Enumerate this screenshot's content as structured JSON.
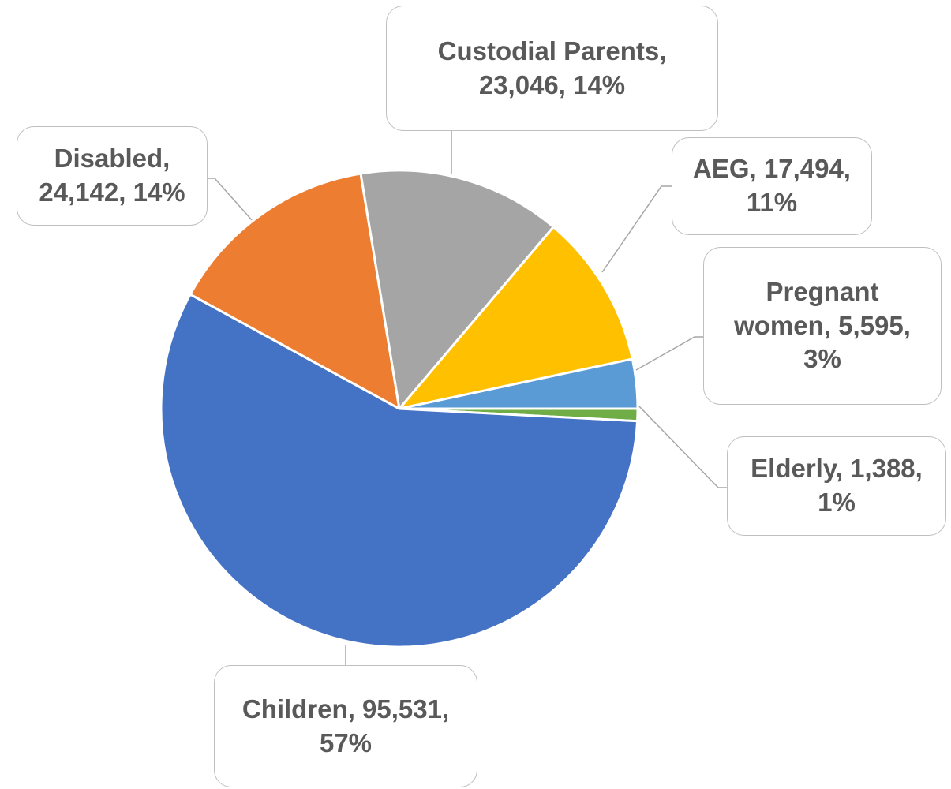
{
  "chart_data": {
    "type": "pie",
    "start": "3 o'clock, clockwise",
    "label_format": "category, value, percentage",
    "slices": [
      {
        "label": "Elderly",
        "value": 1388,
        "percent": "1%",
        "color": "#70ad47"
      },
      {
        "label": "Children",
        "value": 95531,
        "percent": "57%",
        "color": "#4472c4"
      },
      {
        "label": "Disabled",
        "value": 24142,
        "percent": "14%",
        "color": "#ed7d31"
      },
      {
        "label": "Custodial Parents",
        "value": 23046,
        "percent": "14%",
        "color": "#a5a5a5"
      },
      {
        "label": "AEG",
        "value": 17494,
        "percent": "11%",
        "color": "#ffc000"
      },
      {
        "label": "Pregnant women",
        "value": 5595,
        "percent": "3%",
        "color": "#5b9bd5"
      }
    ],
    "data_labels": [
      {
        "key": "custodial",
        "lines": [
          "Custodial Parents,",
          "23,046, 14%"
        ]
      },
      {
        "key": "disabled",
        "lines": [
          "Disabled,",
          "24,142, 14%"
        ]
      },
      {
        "key": "aeg",
        "lines": [
          "AEG, 17,494,",
          "11%"
        ]
      },
      {
        "key": "pregnant",
        "lines": [
          "Pregnant",
          "women, 5,595,",
          "3%"
        ]
      },
      {
        "key": "elderly",
        "lines": [
          "Elderly, 1,388,",
          "1%"
        ]
      },
      {
        "key": "children",
        "lines": [
          "Children, 95,531,",
          "57%"
        ]
      }
    ]
  }
}
